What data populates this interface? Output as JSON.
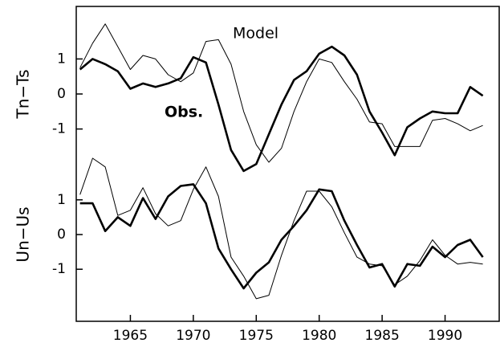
{
  "chart_data": [
    {
      "type": "line",
      "ylabel": "Tn−Ts",
      "x": [
        1961,
        1962,
        1963,
        1964,
        1965,
        1966,
        1967,
        1968,
        1969,
        1970,
        1971,
        1972,
        1973,
        1974,
        1975,
        1976,
        1977,
        1978,
        1979,
        1980,
        1981,
        1982,
        1983,
        1984,
        1985,
        1986,
        1987,
        1988,
        1989,
        1990,
        1991,
        1992,
        1993
      ],
      "xlim": [
        1960.7,
        1994.3
      ],
      "ylim": [
        -2.5,
        2.5
      ],
      "yticks": [
        -1,
        0,
        1
      ],
      "series": [
        {
          "name": "Obs.",
          "color": "#000000",
          "width": 2.6,
          "values": [
            0.7,
            1.0,
            0.85,
            0.65,
            0.15,
            0.3,
            0.2,
            0.3,
            0.45,
            1.05,
            0.9,
            -0.3,
            -1.6,
            -2.2,
            -2.0,
            -1.15,
            -0.3,
            0.4,
            0.65,
            1.15,
            1.35,
            1.1,
            0.55,
            -0.5,
            -1.1,
            -1.75,
            -0.95,
            -0.7,
            -0.5,
            -0.55,
            -0.55,
            0.2,
            -0.05
          ]
        },
        {
          "name": "Model",
          "color": "#000000",
          "width": 1,
          "values": [
            0.75,
            1.45,
            2.0,
            1.35,
            0.7,
            1.1,
            1.0,
            0.55,
            0.35,
            0.6,
            1.5,
            1.55,
            0.85,
            -0.5,
            -1.45,
            -1.95,
            -1.55,
            -0.5,
            0.35,
            1.0,
            0.9,
            0.35,
            -0.15,
            -0.8,
            -0.85,
            -1.5,
            -1.5,
            -1.5,
            -0.75,
            -0.7,
            -0.85,
            -1.05,
            -0.9
          ]
        }
      ]
    },
    {
      "type": "line",
      "ylabel": "Un−Us",
      "x": [
        1961,
        1962,
        1963,
        1964,
        1965,
        1966,
        1967,
        1968,
        1969,
        1970,
        1971,
        1972,
        1973,
        1974,
        1975,
        1976,
        1977,
        1978,
        1979,
        1980,
        1981,
        1982,
        1983,
        1984,
        1985,
        1986,
        1987,
        1988,
        1989,
        1990,
        1991,
        1992,
        1993
      ],
      "xlim": [
        1960.7,
        1994.3
      ],
      "xticks": [
        1965,
        1970,
        1975,
        1980,
        1985,
        1990
      ],
      "ylim": [
        -2.5,
        2.5
      ],
      "yticks": [
        -1,
        0,
        1
      ],
      "series": [
        {
          "color": "#000000",
          "width": 2.6,
          "values": [
            0.9,
            0.9,
            0.1,
            0.5,
            0.25,
            1.05,
            0.45,
            1.1,
            1.4,
            1.45,
            0.9,
            -0.4,
            -1.0,
            -1.55,
            -1.1,
            -0.8,
            -0.15,
            0.25,
            0.7,
            1.3,
            1.25,
            0.4,
            -0.3,
            -0.95,
            -0.85,
            -1.5,
            -0.85,
            -0.9,
            -0.35,
            -0.65,
            -0.3,
            -0.15,
            -0.65
          ]
        },
        {
          "color": "#000000",
          "width": 1,
          "values": [
            1.15,
            2.2,
            1.95,
            0.55,
            0.7,
            1.35,
            0.6,
            0.25,
            0.4,
            1.3,
            1.95,
            1.1,
            -0.65,
            -1.2,
            -1.85,
            -1.75,
            -0.6,
            0.4,
            1.25,
            1.25,
            0.8,
            0.05,
            -0.65,
            -0.85,
            -0.9,
            -1.45,
            -1.2,
            -0.75,
            -0.15,
            -0.6,
            -0.85,
            -0.8,
            -0.85
          ]
        }
      ]
    }
  ]
}
